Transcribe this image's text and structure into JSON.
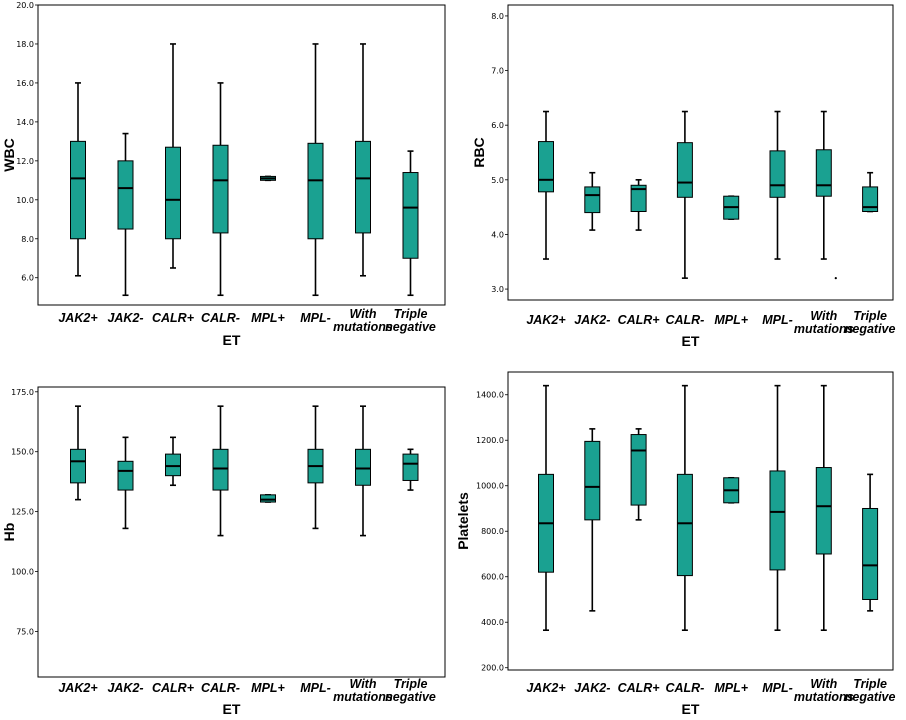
{
  "colors": {
    "box_fill": "#1aa191",
    "box_stroke": "#000000",
    "frame": "#000000"
  },
  "chart_data": [
    {
      "type": "box",
      "ylabel": "WBC",
      "xlabel": "ET",
      "categories": [
        "JAK2+",
        "JAK2-",
        "CALR+",
        "CALR-",
        "MPL+",
        "MPL-",
        "With mutations",
        "Triple negative"
      ],
      "y_ticks": [
        "6.0",
        "8.0",
        "10.0",
        "12.0",
        "14.0",
        "16.0",
        "18.0",
        "20.0"
      ],
      "ylim": [
        4.6,
        20.0
      ],
      "boxes": [
        {
          "min": 6.1,
          "q1": 8.0,
          "median": 11.1,
          "q3": 13.0,
          "max": 16.0
        },
        {
          "min": 5.1,
          "q1": 8.5,
          "median": 10.6,
          "q3": 12.0,
          "max": 13.4
        },
        {
          "min": 6.5,
          "q1": 8.0,
          "median": 10.0,
          "q3": 12.7,
          "max": 18.0
        },
        {
          "min": 5.1,
          "q1": 8.3,
          "median": 11.0,
          "q3": 12.8,
          "max": 16.0
        },
        {
          "min": 11.0,
          "q1": 11.0,
          "median": 11.1,
          "q3": 11.2,
          "max": 11.2
        },
        {
          "min": 5.1,
          "q1": 8.0,
          "median": 11.0,
          "q3": 12.9,
          "max": 18.0
        },
        {
          "min": 6.1,
          "q1": 8.3,
          "median": 11.1,
          "q3": 13.0,
          "max": 18.0
        },
        {
          "min": 5.1,
          "q1": 7.0,
          "median": 9.6,
          "q3": 11.4,
          "max": 12.5
        }
      ]
    },
    {
      "type": "box",
      "ylabel": "RBC",
      "xlabel": "ET",
      "categories": [
        "JAK2+",
        "JAK2-",
        "CALR+",
        "CALR-",
        "MPL+",
        "MPL-",
        "With mutations",
        "Triple negative"
      ],
      "y_ticks": [
        "3.0",
        "4.0",
        "5.0",
        "6.0",
        "7.0",
        "8.0"
      ],
      "ylim": [
        2.8,
        8.2
      ],
      "outliers": [
        {
          "category": "With mutations",
          "y": 3.2
        }
      ],
      "boxes": [
        {
          "min": 3.55,
          "q1": 4.78,
          "median": 5.0,
          "q3": 5.7,
          "max": 6.25
        },
        {
          "min": 4.08,
          "q1": 4.4,
          "median": 4.72,
          "q3": 4.87,
          "max": 5.13
        },
        {
          "min": 4.08,
          "q1": 4.42,
          "median": 4.83,
          "q3": 4.9,
          "max": 5.0
        },
        {
          "min": 3.2,
          "q1": 4.68,
          "median": 4.95,
          "q3": 5.68,
          "max": 6.25
        },
        {
          "min": 4.28,
          "q1": 4.28,
          "median": 4.5,
          "q3": 4.7,
          "max": 4.7
        },
        {
          "min": 3.55,
          "q1": 4.68,
          "median": 4.9,
          "q3": 5.53,
          "max": 6.25
        },
        {
          "min": 3.55,
          "q1": 4.7,
          "median": 4.9,
          "q3": 5.55,
          "max": 6.25
        },
        {
          "min": 4.42,
          "q1": 4.42,
          "median": 4.5,
          "q3": 4.87,
          "max": 5.13
        }
      ]
    },
    {
      "type": "box",
      "ylabel": "Hb",
      "xlabel": "ET",
      "categories": [
        "JAK2+",
        "JAK2-",
        "CALR+",
        "CALR-",
        "MPL+",
        "MPL-",
        "With mutations",
        "Triple negative"
      ],
      "y_ticks": [
        "75.0",
        "100.0",
        "125.0",
        "150.0",
        "175.0"
      ],
      "ylim": [
        56,
        177
      ],
      "boxes": [
        {
          "min": 130,
          "q1": 137,
          "median": 146,
          "q3": 151,
          "max": 169
        },
        {
          "min": 118,
          "q1": 134,
          "median": 142,
          "q3": 146,
          "max": 156
        },
        {
          "min": 136,
          "q1": 140,
          "median": 144,
          "q3": 149,
          "max": 156
        },
        {
          "min": 115,
          "q1": 134,
          "median": 143,
          "q3": 151,
          "max": 169
        },
        {
          "min": 129,
          "q1": 129,
          "median": 130,
          "q3": 132,
          "max": 132
        },
        {
          "min": 118,
          "q1": 137,
          "median": 144,
          "q3": 151,
          "max": 169
        },
        {
          "min": 115,
          "q1": 136,
          "median": 143,
          "q3": 151,
          "max": 169
        },
        {
          "min": 134,
          "q1": 138,
          "median": 145,
          "q3": 149,
          "max": 151
        }
      ]
    },
    {
      "type": "box",
      "ylabel": "Platelets",
      "xlabel": "ET",
      "categories": [
        "JAK2+",
        "JAK2-",
        "CALR+",
        "CALR-",
        "MPL+",
        "MPL-",
        "With mutations",
        "Triple negative"
      ],
      "y_ticks": [
        "200.0",
        "400.0",
        "600.0",
        "800.0",
        "1000.0",
        "1200.0",
        "1400.0"
      ],
      "ylim": [
        190,
        1500
      ],
      "boxes": [
        {
          "min": 365,
          "q1": 620,
          "median": 835,
          "q3": 1050,
          "max": 1440
        },
        {
          "min": 450,
          "q1": 850,
          "median": 995,
          "q3": 1195,
          "max": 1250
        },
        {
          "min": 850,
          "q1": 915,
          "median": 1155,
          "q3": 1225,
          "max": 1250
        },
        {
          "min": 365,
          "q1": 605,
          "median": 835,
          "q3": 1050,
          "max": 1440
        },
        {
          "min": 925,
          "q1": 925,
          "median": 980,
          "q3": 1035,
          "max": 1035
        },
        {
          "min": 365,
          "q1": 630,
          "median": 885,
          "q3": 1065,
          "max": 1440
        },
        {
          "min": 365,
          "q1": 700,
          "median": 910,
          "q3": 1080,
          "max": 1440
        },
        {
          "min": 450,
          "q1": 500,
          "median": 650,
          "q3": 900,
          "max": 1050
        }
      ]
    }
  ]
}
